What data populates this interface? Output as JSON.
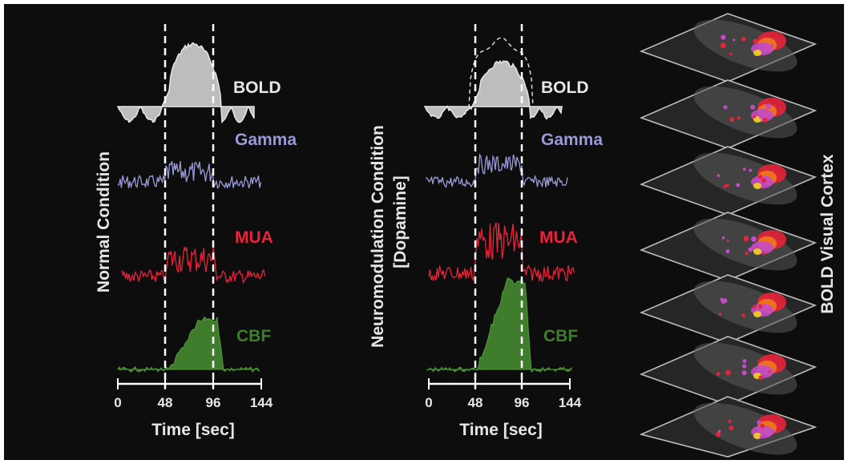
{
  "panels": [
    {
      "condition_label": "Normal Condition",
      "signals": {
        "bold": "BOLD",
        "gamma": "Gamma",
        "mua": "MUA",
        "cbf": "CBF"
      },
      "ticks": [
        "0",
        "48",
        "96",
        "144"
      ],
      "xlabel": "Time [sec]"
    },
    {
      "condition_label_line1": "Neuromodulation Condition",
      "condition_label_line2": "[Dopamine]",
      "signals": {
        "bold": "BOLD",
        "gamma": "Gamma",
        "mua": "MUA",
        "cbf": "CBF"
      },
      "ticks": [
        "0",
        "48",
        "96",
        "144"
      ],
      "xlabel": "Time [sec]"
    }
  ],
  "cortex_label": "BOLD Visual Cortex",
  "colors": {
    "background": "#0d0d0d",
    "bold": "#c8c8c8",
    "gamma": "#9a9ad8",
    "mua": "#e8233a",
    "cbf": "#3f7d2c",
    "text": "#e6e6e6"
  }
}
